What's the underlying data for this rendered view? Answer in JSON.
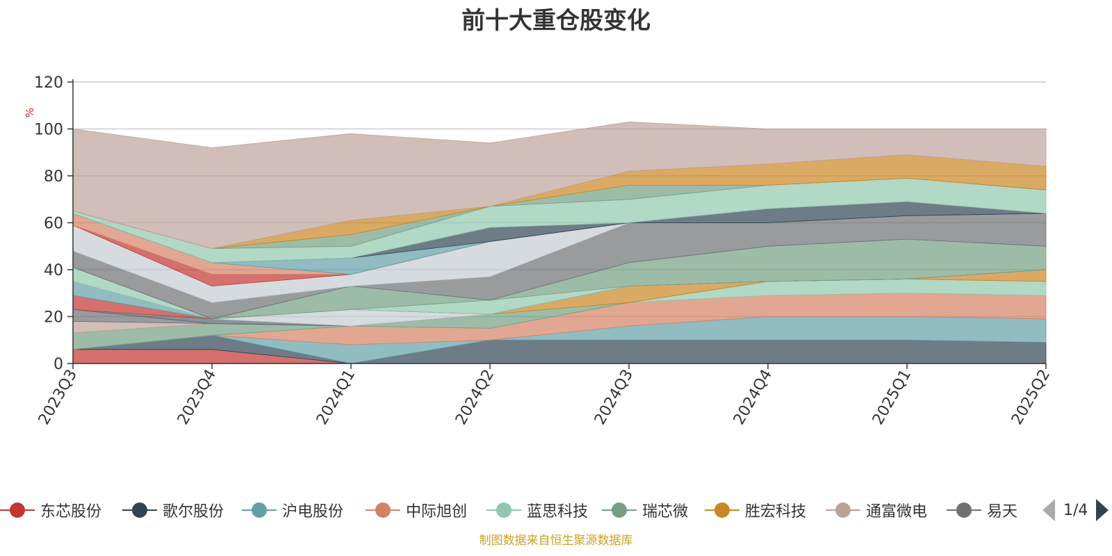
{
  "title": "前十大重仓股变化",
  "source": "制图数据来自恒生聚源数据库",
  "pager": {
    "text": "1/4"
  },
  "chart_data": {
    "type": "area",
    "stacked": true,
    "ylabel": "%",
    "ylim": [
      0,
      120
    ],
    "yticks": [
      0,
      20,
      40,
      60,
      80,
      100,
      120
    ],
    "grid": true,
    "legend_position": "bottom",
    "categories": [
      "2023Q3",
      "2023Q4",
      "2024Q1",
      "2024Q2",
      "2024Q3",
      "2024Q4",
      "2025Q1",
      "2025Q2"
    ],
    "series": [
      {
        "name": "东芯股份",
        "color": "#c23531",
        "values": [
          6,
          6,
          0,
          0,
          0,
          0,
          0,
          0
        ]
      },
      {
        "name": "歌尔股份",
        "color": "#2f4554",
        "values": [
          0,
          6,
          0,
          10,
          10,
          10,
          10,
          9
        ]
      },
      {
        "name": "沪电股份",
        "color": "#61a0a8",
        "values": [
          0,
          0,
          8,
          0,
          6,
          10,
          10,
          10
        ]
      },
      {
        "name": "中际旭创",
        "color": "#d48265",
        "values": [
          0,
          0,
          8,
          5,
          10,
          9,
          10,
          10
        ]
      },
      {
        "name": "蓝思科技",
        "color": "#91c7ae",
        "values": [
          0,
          0,
          0,
          0,
          0,
          6,
          6,
          6
        ]
      },
      {
        "name": "瑞芯微",
        "color": "#749f83",
        "values": [
          7,
          5,
          0,
          6,
          0,
          0,
          0,
          0
        ]
      },
      {
        "name": "胜宏科技",
        "color": "#ca8622",
        "values": [
          0,
          0,
          0,
          0,
          7,
          0,
          0,
          5
        ]
      },
      {
        "name": "通富微电",
        "color": "#bda29a",
        "values": [
          5,
          0,
          0,
          0,
          0,
          0,
          0,
          0
        ]
      },
      {
        "name": "易天",
        "color": "#6e7074",
        "values": [
          5,
          0,
          0,
          0,
          0,
          0,
          0,
          0
        ]
      },
      {
        "name": "",
        "color": "#546570",
        "values": [
          0,
          2,
          0,
          0,
          0,
          0,
          0,
          0
        ]
      },
      {
        "name": "",
        "color": "#c4ccd3",
        "values": [
          0,
          0,
          7,
          0,
          0,
          0,
          0,
          0
        ]
      },
      {
        "name": "",
        "color": "#c23531",
        "values": [
          6,
          0,
          0,
          0,
          0,
          0,
          0,
          0
        ]
      },
      {
        "name": "",
        "color": "#61a0a8",
        "values": [
          6,
          0,
          0,
          0,
          0,
          0,
          0,
          0
        ]
      },
      {
        "name": "",
        "color": "#91c7ae",
        "values": [
          6,
          0,
          0,
          6,
          0,
          0,
          0,
          0
        ]
      },
      {
        "name": "",
        "color": "#749f83",
        "values": [
          0,
          0,
          10,
          0,
          10,
          15,
          17,
          10
        ]
      },
      {
        "name": "",
        "color": "#6e7074",
        "values": [
          7,
          7,
          0,
          10,
          17,
          10,
          10,
          14
        ]
      },
      {
        "name": "",
        "color": "#c4ccd3",
        "values": [
          11,
          7,
          5,
          15,
          0,
          0,
          0,
          0
        ]
      },
      {
        "name": "",
        "color": "#c23531",
        "values": [
          0,
          5,
          0,
          0,
          0,
          0,
          0,
          0
        ]
      },
      {
        "name": "",
        "color": "#d48265",
        "values": [
          5,
          5,
          0,
          0,
          0,
          0,
          0,
          0
        ]
      },
      {
        "name": "",
        "color": "#61a0a8",
        "values": [
          0,
          0,
          7,
          0,
          0,
          0,
          0,
          0
        ]
      },
      {
        "name": "",
        "color": "#2f4554",
        "values": [
          0,
          0,
          0,
          6,
          0,
          6,
          6,
          0
        ]
      },
      {
        "name": "",
        "color": "#91c7ae",
        "values": [
          1,
          6,
          5,
          9,
          10,
          10,
          10,
          10
        ]
      },
      {
        "name": "",
        "color": "#749f83",
        "values": [
          0,
          0,
          5,
          0,
          6,
          0,
          0,
          0
        ]
      },
      {
        "name": "",
        "color": "#ca8622",
        "values": [
          0,
          0,
          6,
          0,
          6,
          9,
          10,
          10
        ]
      },
      {
        "name": "",
        "color": "#bda29a",
        "values": [
          35,
          43,
          37,
          27,
          21,
          15,
          11,
          16
        ]
      }
    ]
  }
}
